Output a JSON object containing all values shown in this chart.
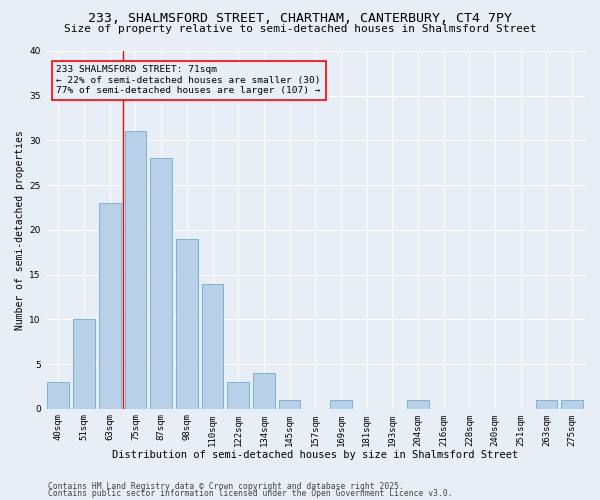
{
  "title1": "233, SHALMSFORD STREET, CHARTHAM, CANTERBURY, CT4 7PY",
  "title2": "Size of property relative to semi-detached houses in Shalmsford Street",
  "xlabel": "Distribution of semi-detached houses by size in Shalmsford Street",
  "ylabel": "Number of semi-detached properties",
  "categories": [
    "40sqm",
    "51sqm",
    "63sqm",
    "75sqm",
    "87sqm",
    "98sqm",
    "110sqm",
    "122sqm",
    "134sqm",
    "145sqm",
    "157sqm",
    "169sqm",
    "181sqm",
    "193sqm",
    "204sqm",
    "216sqm",
    "228sqm",
    "240sqm",
    "251sqm",
    "263sqm",
    "275sqm"
  ],
  "values": [
    3,
    10,
    23,
    31,
    28,
    19,
    14,
    3,
    4,
    1,
    0,
    1,
    0,
    0,
    1,
    0,
    0,
    0,
    0,
    1,
    1
  ],
  "bar_color": "#b8d0e8",
  "bar_edgecolor": "#6aaed6",
  "ylim": [
    0,
    40
  ],
  "yticks": [
    0,
    5,
    10,
    15,
    20,
    25,
    30,
    35,
    40
  ],
  "vline_x_index": 2.5,
  "annotation_title": "233 SHALMSFORD STREET: 71sqm",
  "annotation_line1": "← 22% of semi-detached houses are smaller (30)",
  "annotation_line2": "77% of semi-detached houses are larger (107) →",
  "bg_color": "#e8eef5",
  "grid_color": "#ffffff",
  "footer1": "Contains HM Land Registry data © Crown copyright and database right 2025.",
  "footer2": "Contains public sector information licensed under the Open Government Licence v3.0.",
  "title1_fontsize": 9.5,
  "title2_fontsize": 8,
  "xlabel_fontsize": 7.5,
  "ylabel_fontsize": 7,
  "tick_fontsize": 6.5,
  "annotation_fontsize": 6.8,
  "footer_fontsize": 5.8
}
